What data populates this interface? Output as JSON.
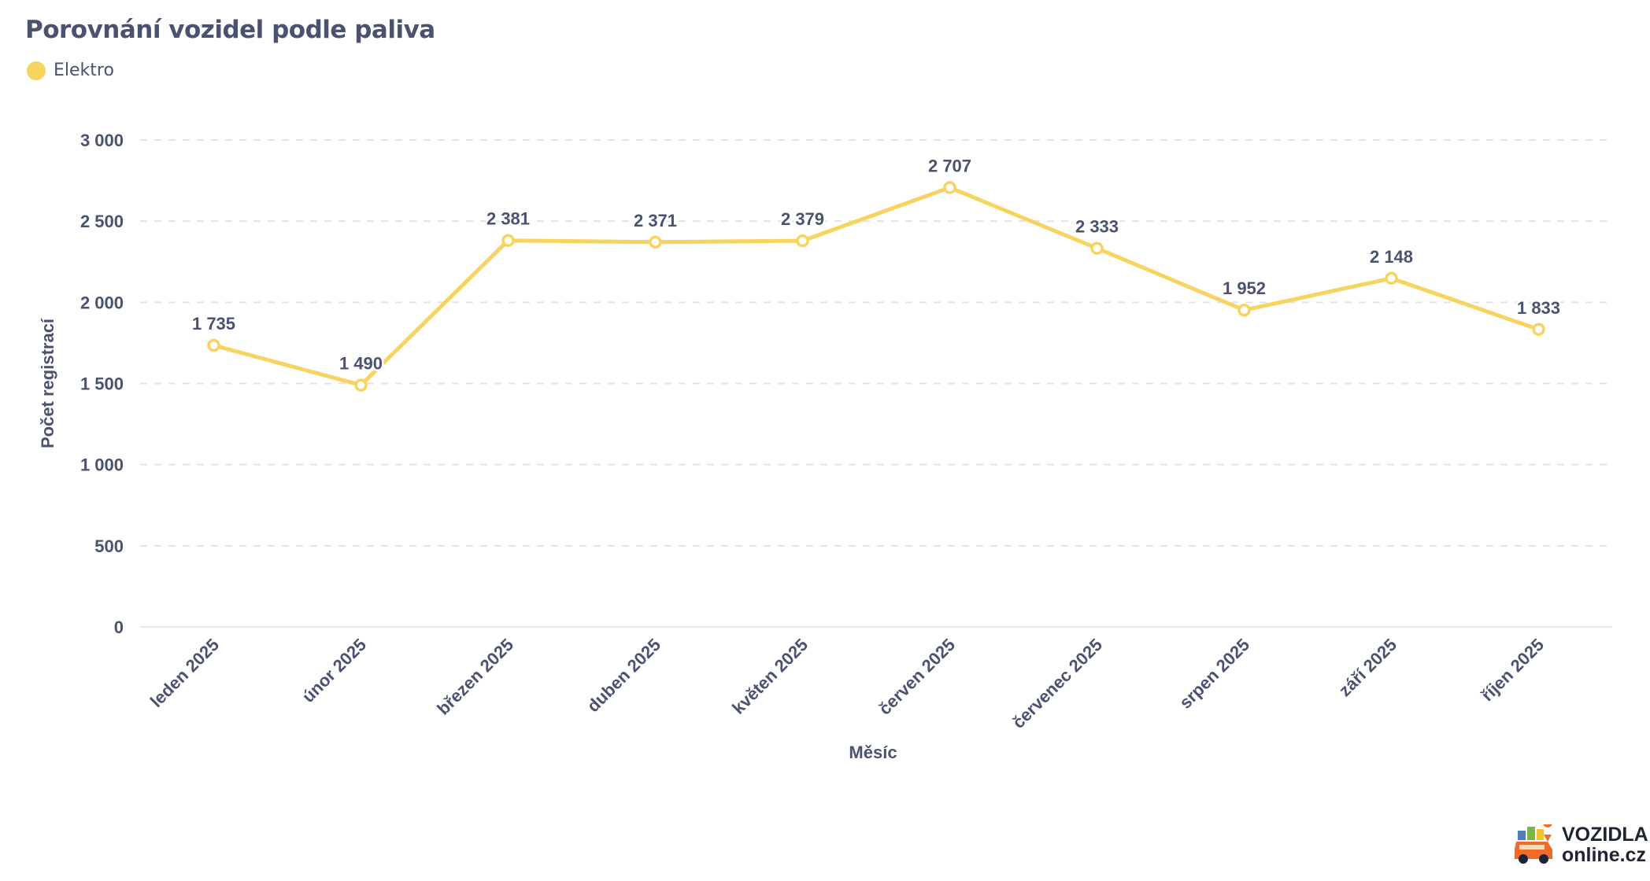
{
  "title": "Porovnání vozidel podle paliva",
  "colors": {
    "series": "#f7d460",
    "text": "#4a5270",
    "grid": "#e3e3e3",
    "axis": "#e6e6e6"
  },
  "logo": {
    "line1": "VOZIDLA",
    "line2": "online.cz"
  },
  "chart_data": {
    "type": "line",
    "title": "Porovnání vozidel podle paliva",
    "xlabel": "Měsíc",
    "ylabel": "Počet registrací",
    "categories": [
      "leden 2025",
      "únor 2025",
      "březen 2025",
      "duben 2025",
      "květen 2025",
      "červen 2025",
      "červenec 2025",
      "srpen 2025",
      "září 2025",
      "říjen 2025"
    ],
    "series": [
      {
        "name": "Elektro",
        "values": [
          1735,
          1490,
          2381,
          2371,
          2379,
          2707,
          2333,
          1952,
          2148,
          1833
        ],
        "labels": [
          "1 735",
          "1 490",
          "2 381",
          "2 371",
          "2 379",
          "2 707",
          "2 333",
          "1 952",
          "2 148",
          "1 833"
        ]
      }
    ],
    "ylim": [
      0,
      3000
    ],
    "yticks": [
      0,
      500,
      1000,
      1500,
      2000,
      2500,
      3000
    ],
    "ytick_labels": [
      "0",
      "500",
      "1 000",
      "1 500",
      "2 000",
      "2 500",
      "3 000"
    ],
    "grid": true,
    "legend": "top-left"
  }
}
